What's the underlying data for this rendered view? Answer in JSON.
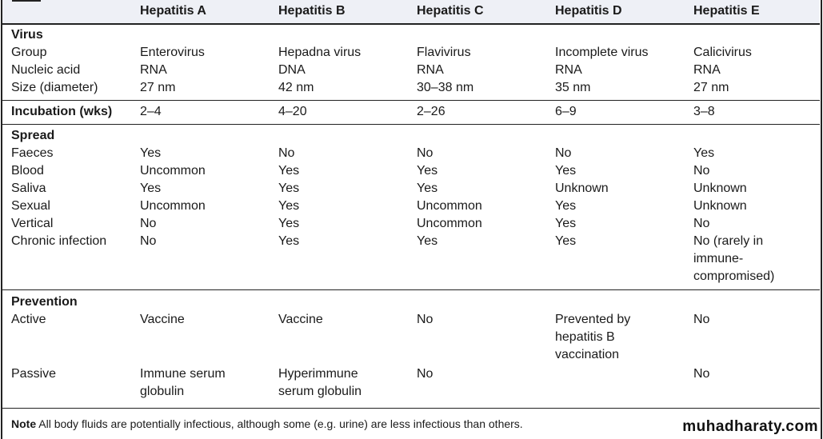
{
  "columns": [
    "",
    "Hepatitis A",
    "Hepatitis B",
    "Hepatitis C",
    "Hepatitis D",
    "Hepatitis E"
  ],
  "sections": [
    {
      "title": "Virus",
      "rows": [
        {
          "label": "Group",
          "values": [
            "Enterovirus",
            "Hepadna virus",
            "Flavivirus",
            "Incomplete virus",
            "Calicivirus"
          ]
        },
        {
          "label": "Nucleic acid",
          "values": [
            "RNA",
            "DNA",
            "RNA",
            "RNA",
            "RNA"
          ]
        },
        {
          "label": "Size (diameter)",
          "values": [
            "27 nm",
            "42 nm",
            "30–38 nm",
            "35 nm",
            "27 nm"
          ]
        }
      ]
    },
    {
      "title": "Incubation (wks)",
      "inline": true,
      "values": [
        "2–4",
        "4–20",
        "2–26",
        "6–9",
        "3–8"
      ]
    },
    {
      "title": "Spread",
      "rows": [
        {
          "label": "Faeces",
          "values": [
            "Yes",
            "No",
            "No",
            "No",
            "Yes"
          ]
        },
        {
          "label": "Blood",
          "values": [
            "Uncommon",
            "Yes",
            "Yes",
            "Yes",
            "No"
          ]
        },
        {
          "label": "Saliva",
          "values": [
            "Yes",
            "Yes",
            "Yes",
            "Unknown",
            "Unknown"
          ]
        },
        {
          "label": "Sexual",
          "values": [
            "Uncommon",
            "Yes",
            "Uncommon",
            "Yes",
            "Unknown"
          ]
        },
        {
          "label": "Vertical",
          "values": [
            "No",
            "Yes",
            "Uncommon",
            "Yes",
            "No"
          ]
        },
        {
          "label": "Chronic infection",
          "values": [
            "No",
            "Yes",
            "Yes",
            "Yes",
            "No (rarely in\nimmune-\ncompromised)"
          ]
        }
      ]
    },
    {
      "title": "Prevention",
      "rows": [
        {
          "label": "Active",
          "values": [
            "Vaccine",
            "Vaccine",
            "No",
            "Prevented by\nhepatitis B\nvaccination",
            "No"
          ]
        },
        {
          "label": "Passive",
          "values": [
            "Immune serum\nglobulin",
            "Hyperimmune\nserum globulin",
            "No",
            "",
            "No"
          ]
        }
      ]
    }
  ],
  "note": {
    "label": "Note",
    "text": " All body fluids are potentially infectious, although some (e.g. urine) are less infectious than others."
  },
  "watermark": "muhadharaty.com"
}
